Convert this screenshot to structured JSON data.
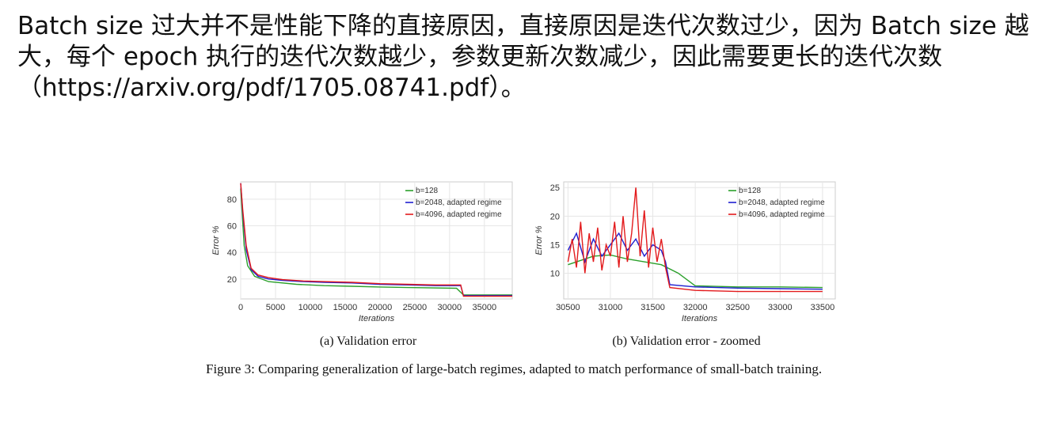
{
  "intro_text": "Batch size 过大并不是性能下降的直接原因，直接原因是迭代次数过少，因为 Batch size 越大，每个 epoch 执行的迭代次数越少，参数更新次数减少，因此需要更长的迭代次数（https://arxiv.org/pdf/1705.08741.pdf）。",
  "figure_caption": "Figure 3: Comparing generalization of large-batch regimes, adapted to match performance of small-batch training.",
  "chart_data": [
    {
      "type": "line",
      "caption": "(a) Validation error",
      "xlabel": "Iterations",
      "ylabel": "Error %",
      "xlim": [
        0,
        39000
      ],
      "ylim": [
        5,
        93
      ],
      "xticks": [
        0,
        5000,
        10000,
        15000,
        20000,
        25000,
        30000,
        35000
      ],
      "xtick_labels": [
        "0",
        "5000",
        "10000",
        "15000",
        "20000",
        "25000",
        "30000",
        "35000"
      ],
      "yticks": [
        20,
        40,
        60,
        80
      ],
      "ytick_labels": [
        "20",
        "40",
        "60",
        "80"
      ],
      "grid": true,
      "legend_position": "top-right",
      "series": [
        {
          "name": "b=128",
          "color": "#2ca02c",
          "x": [
            0,
            500,
            1000,
            2000,
            4000,
            8000,
            12000,
            16000,
            20000,
            25000,
            31000,
            32000,
            35000,
            39000
          ],
          "y": [
            88,
            45,
            30,
            22,
            18,
            16,
            15,
            14.5,
            14,
            13.5,
            13,
            8,
            8,
            8
          ]
        },
        {
          "name": "b=2048, adapted regime",
          "color": "#1f1fd0",
          "x": [
            0,
            300,
            800,
            1500,
            2500,
            4000,
            6000,
            9000,
            12000,
            16000,
            20000,
            24000,
            28000,
            31000,
            31600,
            32000,
            35000,
            39000
          ],
          "y": [
            92,
            70,
            42,
            27,
            22,
            20,
            19,
            18,
            17.5,
            17,
            16,
            15.5,
            15,
            15,
            15,
            7.5,
            7.5,
            7.5
          ]
        },
        {
          "name": "b=4096, adapted regime",
          "color": "#e31a1c",
          "x": [
            0,
            300,
            800,
            1500,
            2500,
            4000,
            6000,
            9000,
            12000,
            16000,
            20000,
            24000,
            28000,
            31000,
            31600,
            32000,
            35000,
            39000
          ],
          "y": [
            92,
            72,
            45,
            28,
            23,
            21,
            19.5,
            18.5,
            18,
            17.5,
            16.5,
            16,
            15.5,
            15.5,
            15.5,
            7,
            7,
            7
          ]
        }
      ]
    },
    {
      "type": "line",
      "caption": "(b) Validation error - zoomed",
      "xlabel": "Iterations",
      "ylabel": "Error %",
      "xlim": [
        30450,
        33650
      ],
      "ylim": [
        5.5,
        26
      ],
      "xticks": [
        30500,
        31000,
        31500,
        32000,
        32500,
        33000,
        33500
      ],
      "xtick_labels": [
        "30500",
        "31000",
        "31500",
        "32000",
        "32500",
        "33000",
        "33500"
      ],
      "yticks": [
        10,
        15,
        20,
        25
      ],
      "ytick_labels": [
        "10",
        "15",
        "20",
        "25"
      ],
      "grid": true,
      "legend_position": "top-right",
      "series": [
        {
          "name": "b=128",
          "color": "#2ca02c",
          "x": [
            30500,
            30800,
            31000,
            31200,
            31400,
            31600,
            31800,
            32000,
            32500,
            33000,
            33500
          ],
          "y": [
            11.5,
            13,
            13.2,
            12.5,
            12,
            11.5,
            10,
            7.8,
            7.6,
            7.6,
            7.5
          ]
        },
        {
          "name": "b=2048, adapted regime",
          "color": "#1f1fd0",
          "x": [
            30500,
            30600,
            30700,
            30800,
            30900,
            31000,
            31100,
            31200,
            31300,
            31400,
            31500,
            31600,
            31650,
            31700,
            32000,
            32500,
            33000,
            33500
          ],
          "y": [
            14,
            17,
            12,
            16,
            13,
            15,
            17,
            14,
            16,
            13,
            15,
            14,
            12,
            8,
            7.6,
            7.4,
            7.3,
            7.2
          ]
        },
        {
          "name": "b=4096, adapted regime",
          "color": "#e31a1c",
          "x": [
            30500,
            30550,
            30600,
            30650,
            30700,
            30750,
            30800,
            30850,
            30900,
            30950,
            31000,
            31050,
            31100,
            31150,
            31200,
            31250,
            31300,
            31350,
            31400,
            31450,
            31500,
            31550,
            31600,
            31650,
            31700,
            32000,
            32500,
            33000,
            33500
          ],
          "y": [
            12,
            16,
            11,
            19,
            10,
            17,
            12,
            18,
            10.5,
            15,
            13,
            19,
            11,
            20,
            12,
            17,
            25,
            13,
            21,
            11,
            18,
            12,
            16,
            11,
            7.5,
            7,
            6.8,
            6.8,
            6.8
          ]
        }
      ]
    }
  ]
}
